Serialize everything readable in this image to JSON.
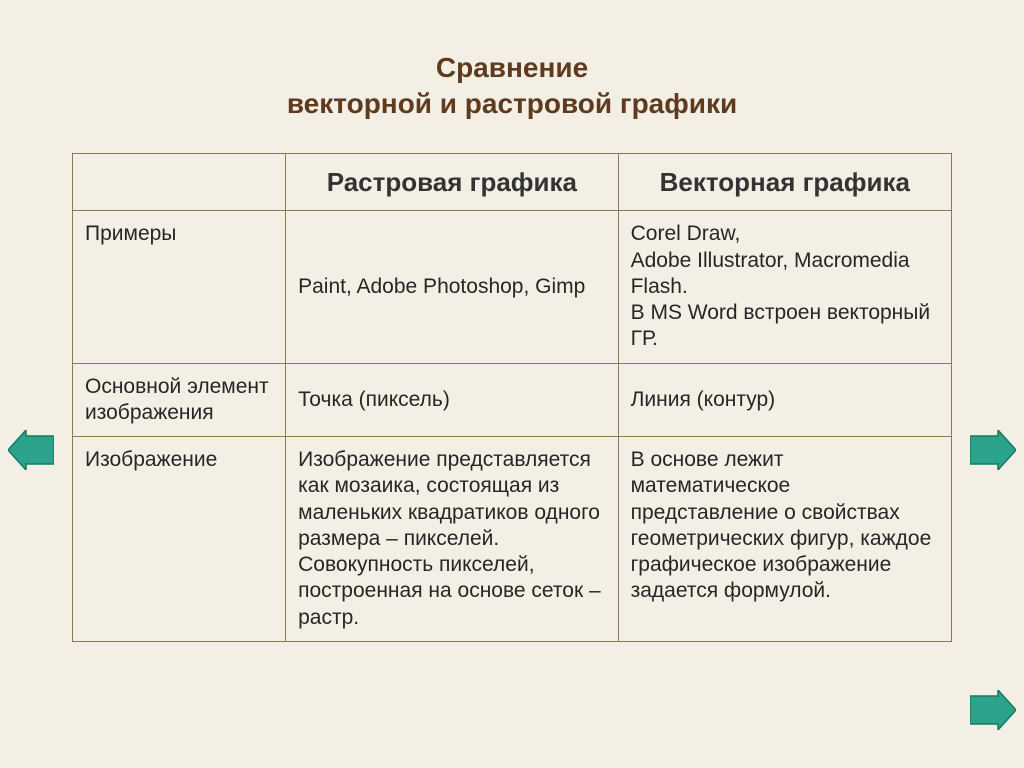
{
  "title_line1": "Сравнение",
  "title_line2": "векторной  и растровой графики",
  "table": {
    "header_blank": "",
    "header_raster": "Растровая графика",
    "header_vector": "Векторная графика",
    "rows": [
      {
        "label": "Примеры",
        "raster": "Paint, Adobe Photoshop, Gimp",
        "vector": "Corel Draw,\n Adobe Illustrator, Macromedia Flash.\nВ MS Word встроен векторный ГР."
      },
      {
        "label": "Основной элемент изображения",
        "raster": "Точка (пиксель)",
        "vector": "Линия (контур)"
      },
      {
        "label": "Изображение",
        "raster": "Изображение представляется как мозаика, состоящая из маленьких квадратиков одного размера – пикселей. Совокупность пикселей, построенная на основе сеток – растр.",
        "vector": "В основе лежит математическое представление о свойствах геометрических фигур, каждое графическое изображение задается формулой."
      }
    ]
  },
  "colors": {
    "slide_bg": "#f3efe4",
    "title": "#5e3a1f",
    "border": "#8a7b52",
    "arrow_fill": "#2aa38a",
    "arrow_stroke": "#157a63"
  },
  "nav": {
    "prev": "previous-slide",
    "next": "next-slide"
  }
}
